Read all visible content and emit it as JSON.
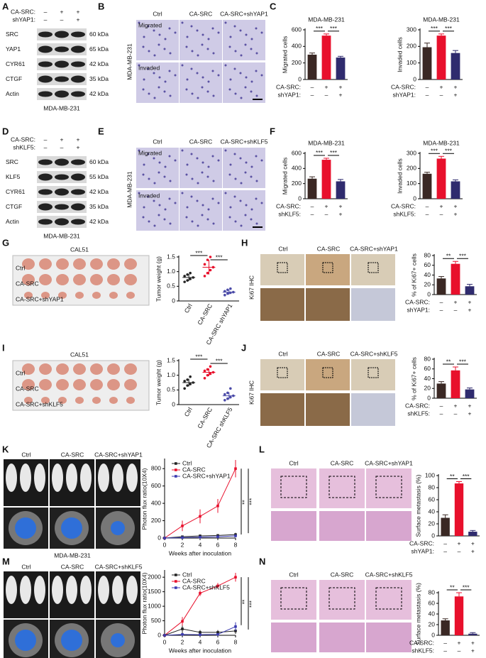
{
  "panel_labels": [
    "A",
    "B",
    "C",
    "D",
    "E",
    "F",
    "G",
    "H",
    "I",
    "J",
    "K",
    "L",
    "M",
    "N"
  ],
  "blots": [
    {
      "conditions": [
        {
          "label": "CA-SRC:",
          "signs": [
            "–",
            "+",
            "+"
          ]
        },
        {
          "label": "shYAP1:",
          "signs": [
            "–",
            "–",
            "+"
          ]
        }
      ],
      "bands": [
        {
          "name": "SRC",
          "size": "60 kDa"
        },
        {
          "name": "YAP1",
          "size": "65 kDa"
        },
        {
          "name": "CYR61",
          "size": "42 kDa"
        },
        {
          "name": "CTGF",
          "size": "35 kDa"
        },
        {
          "name": "Actin",
          "size": "42 kDa"
        }
      ],
      "caption": "MDA-MB-231"
    },
    {
      "conditions": [
        {
          "label": "CA-SRC:",
          "signs": [
            "–",
            "+",
            "+"
          ]
        },
        {
          "label": "shKLF5:",
          "signs": [
            "–",
            "–",
            "+"
          ]
        }
      ],
      "bands": [
        {
          "name": "SRC",
          "size": "60 kDa"
        },
        {
          "name": "KLF5",
          "size": "55 kDa"
        },
        {
          "name": "CYR61",
          "size": "42 kDa"
        },
        {
          "name": "CTGF",
          "size": "35 kDa"
        },
        {
          "name": "Actin",
          "size": "42 kDa"
        }
      ],
      "caption": "MDA-MB-231"
    }
  ],
  "transwell": [
    {
      "columns": [
        "Ctrl",
        "CA-SRC",
        "CA-SRC+shYAP1"
      ],
      "rows": [
        "Migrated",
        "Invaded"
      ],
      "side_label": "MDA-MB-231"
    },
    {
      "columns": [
        "Ctrl",
        "CA-SRC",
        "CA-SRC+shKLF5"
      ],
      "rows": [
        "Migrated",
        "Invaded"
      ],
      "side_label": "MDA-MB-231"
    }
  ],
  "tumors": [
    {
      "title": "CAL51",
      "rows": [
        "Ctrl",
        "CA-SRC",
        "CA-SRC+shYAP1"
      ]
    },
    {
      "title": "CAL51",
      "rows": [
        "Ctrl",
        "CA-SRC",
        "CA-SRC+shKLF5"
      ]
    }
  ],
  "ihc": [
    {
      "columns": [
        "Ctrl",
        "CA-SRC",
        "CA-SRC+shYAP1"
      ],
      "side_label": "Ki67 IHC"
    },
    {
      "columns": [
        "Ctrl",
        "CA-SRC",
        "CA-SRC+shKLF5"
      ],
      "side_label": "Ki67 IHC"
    }
  ],
  "imaging": [
    {
      "columns": [
        "Ctrl",
        "CA-SRC",
        "CA-SRC+shYAP1"
      ],
      "caption": "MDA-MB-231"
    },
    {
      "columns": [
        "Ctrl",
        "CA-SRC",
        "CA-SRC+shKLF5"
      ],
      "caption": "MDA-MB-231"
    }
  ],
  "histology": [
    {
      "columns": [
        "Ctrl",
        "CA-SRC",
        "CA-SRC+shYAP1"
      ]
    },
    {
      "columns": [
        "Ctrl",
        "CA-SRC",
        "CA-SRC+shKLF5"
      ]
    }
  ],
  "charts": [
    {
      "type": "bar",
      "title": "MDA-MB-231",
      "ylabel": "Migrated cells",
      "ylim": [
        0,
        600
      ],
      "yticks": [
        0,
        200,
        400,
        600
      ],
      "values": [
        300,
        530,
        265
      ],
      "errors": [
        20,
        20,
        15
      ],
      "colors": [
        "#3a2824",
        "#e8102c",
        "#2f2b6e"
      ],
      "annotations": [
        "***",
        "***"
      ],
      "conditions": [
        {
          "label": "CA-SRC:",
          "signs": [
            "–",
            "+",
            "+"
          ]
        },
        {
          "label": "shYAP1:",
          "signs": [
            "–",
            "–",
            "+"
          ]
        }
      ]
    },
    {
      "type": "bar",
      "title": "MDA-MB-231",
      "ylabel": "Invaded cells",
      "ylim": [
        0,
        300
      ],
      "yticks": [
        0,
        100,
        200,
        300
      ],
      "values": [
        195,
        265,
        160
      ],
      "errors": [
        25,
        10,
        15
      ],
      "colors": [
        "#3a2824",
        "#e8102c",
        "#2f2b6e"
      ],
      "annotations": [
        "***",
        "***"
      ],
      "conditions": [
        {
          "label": "CA-SRC:",
          "signs": [
            "–",
            "+",
            "+"
          ]
        },
        {
          "label": "shYAP1:",
          "signs": [
            "–",
            "–",
            "+"
          ]
        }
      ]
    },
    {
      "type": "bar",
      "title": "MDA-MB-231",
      "ylabel": "Migrated cells",
      "ylim": [
        0,
        600
      ],
      "yticks": [
        0,
        200,
        400,
        600
      ],
      "values": [
        265,
        515,
        230
      ],
      "errors": [
        25,
        20,
        25
      ],
      "colors": [
        "#3a2824",
        "#e8102c",
        "#2f2b6e"
      ],
      "annotations": [
        "***",
        "***"
      ],
      "conditions": [
        {
          "label": "CA-SRC:",
          "signs": [
            "–",
            "+",
            "+"
          ]
        },
        {
          "label": "shKLF5:",
          "signs": [
            "–",
            "–",
            "+"
          ]
        }
      ]
    },
    {
      "type": "bar",
      "title": "MDA-MB-231",
      "ylabel": "Invaded cells",
      "ylim": [
        0,
        300
      ],
      "yticks": [
        0,
        100,
        200,
        300
      ],
      "values": [
        165,
        265,
        115
      ],
      "errors": [
        10,
        15,
        10
      ],
      "colors": [
        "#3a2824",
        "#e8102c",
        "#2f2b6e"
      ],
      "annotations": [
        "***",
        "***"
      ],
      "conditions": [
        {
          "label": "CA-SRC:",
          "signs": [
            "–",
            "+",
            "+"
          ]
        },
        {
          "label": "shKLF5:",
          "signs": [
            "–",
            "–",
            "+"
          ]
        }
      ]
    },
    {
      "type": "scatter",
      "ylabel": "Tumor weight (g)",
      "categories": [
        "Ctrl",
        "CA-SRC",
        "CA-SRC shYAP1"
      ],
      "ylim": [
        0,
        1.5
      ],
      "yticks": [
        0,
        0.5,
        {
          "value": 1,
          "label": "1.0"
        },
        1.5
      ],
      "points": [
        [
          0.65,
          0.7,
          0.75,
          0.8,
          0.85,
          0.9,
          0.95
        ],
        [
          0.85,
          0.95,
          1.05,
          1.15,
          1.25,
          1.4,
          1.5
        ],
        [
          0.2,
          0.25,
          0.28,
          0.3,
          0.33,
          0.38,
          0.42
        ]
      ],
      "means": [
        0.8,
        1.15,
        0.3
      ],
      "errors": [
        0.12,
        0.25,
        0.08
      ],
      "colors": [
        "#222222",
        "#e8102c",
        "#4b4ba8"
      ],
      "annotations": [
        "***",
        "***"
      ]
    },
    {
      "type": "bar",
      "ylabel": "% of Ki67+ cells",
      "ylim": [
        0,
        80
      ],
      "yticks": [
        0,
        20,
        40,
        60,
        80
      ],
      "values": [
        33,
        63,
        17
      ],
      "errors": [
        4,
        5,
        4
      ],
      "colors": [
        "#3a2824",
        "#e8102c",
        "#2f2b6e"
      ],
      "annotations": [
        "**",
        "***"
      ],
      "conditions": [
        {
          "label": "CA-SRC:",
          "signs": [
            "–",
            "+",
            "+"
          ]
        },
        {
          "label": "shYAP1:",
          "signs": [
            "–",
            "–",
            "+"
          ]
        }
      ]
    },
    {
      "type": "scatter",
      "ylabel": "Tumor weight (g)",
      "categories": [
        "Ctrl",
        "CA-SRC",
        "CA-SRC shKLF5"
      ],
      "ylim": [
        0,
        1.5
      ],
      "yticks": [
        0,
        0.5,
        {
          "value": 1,
          "label": "1.0"
        },
        1.5
      ],
      "points": [
        [
          0.55,
          0.65,
          0.7,
          0.75,
          0.8,
          0.85,
          0.95
        ],
        [
          0.9,
          1.0,
          1.05,
          1.1,
          1.15,
          1.2,
          1.3
        ],
        [
          0.15,
          0.2,
          0.25,
          0.3,
          0.35,
          0.4,
          0.55
        ]
      ],
      "means": [
        0.75,
        1.1,
        0.3
      ],
      "errors": [
        0.13,
        0.13,
        0.12
      ],
      "colors": [
        "#222222",
        "#e8102c",
        "#4b4ba8"
      ],
      "annotations": [
        "***",
        "***"
      ]
    },
    {
      "type": "bar",
      "ylabel": "% of Ki67+ cells",
      "ylim": [
        0,
        80
      ],
      "yticks": [
        0,
        20,
        40,
        60,
        80
      ],
      "values": [
        30,
        57,
        18
      ],
      "errors": [
        4,
        7,
        3
      ],
      "colors": [
        "#3a2824",
        "#e8102c",
        "#2f2b6e"
      ],
      "annotations": [
        "**",
        "***"
      ],
      "conditions": [
        {
          "label": "CA-SRC:",
          "signs": [
            "–",
            "+",
            "+"
          ]
        },
        {
          "label": "shKLF5:",
          "signs": [
            "–",
            "–",
            "+"
          ]
        }
      ]
    },
    {
      "type": "line",
      "ylabel": "Photon flux ratio(10X4)",
      "xlabel": "Weeks after inoculation",
      "xlim": [
        0,
        8
      ],
      "xticks": [
        0,
        2,
        4,
        6,
        8
      ],
      "ylim": [
        0,
        900
      ],
      "yticks": [
        0,
        200,
        400,
        600,
        800
      ],
      "x": [
        0,
        2,
        4,
        6,
        8
      ],
      "series": [
        {
          "name": "Ctrl",
          "color": "#222222",
          "values": [
            0,
            15,
            25,
            30,
            40
          ],
          "errors": [
            0,
            10,
            15,
            15,
            20
          ]
        },
        {
          "name": "CA-SRC",
          "color": "#e8102c",
          "values": [
            0,
            140,
            250,
            370,
            800
          ],
          "errors": [
            0,
            60,
            80,
            80,
            100
          ]
        },
        {
          "name": "CA-SRC+shYAP1",
          "color": "#3b3bb0",
          "values": [
            0,
            5,
            10,
            15,
            25
          ],
          "errors": [
            0,
            5,
            8,
            10,
            15
          ]
        }
      ],
      "annotations": [
        "**",
        "***"
      ]
    },
    {
      "type": "bar",
      "ylabel": "Surface metastasis (%)",
      "ylim": [
        0,
        100
      ],
      "yticks": [
        0,
        20,
        40,
        60,
        80,
        100
      ],
      "values": [
        30,
        87,
        7
      ],
      "errors": [
        5,
        3,
        2
      ],
      "colors": [
        "#3a2824",
        "#e8102c",
        "#2f2b6e"
      ],
      "annotations": [
        "**",
        "***"
      ],
      "conditions": [
        {
          "label": "CA-SRC:",
          "signs": [
            "–",
            "+",
            "+"
          ]
        },
        {
          "label": "shYAP1:",
          "signs": [
            "–",
            "–",
            "+"
          ]
        }
      ]
    },
    {
      "type": "line",
      "ylabel": "Photon flux ratio(10X4)",
      "xlabel": "Weeks after inoculation",
      "xlim": [
        0,
        8
      ],
      "xticks": [
        0,
        2,
        4,
        6,
        8
      ],
      "ylim": [
        0,
        2200
      ],
      "yticks": [
        0,
        500,
        1000,
        1500,
        2000
      ],
      "x": [
        0,
        2,
        4,
        6,
        8
      ],
      "series": [
        {
          "name": "Ctrl",
          "color": "#222222",
          "values": [
            0,
            220,
            100,
            100,
            150
          ],
          "errors": [
            0,
            200,
            80,
            80,
            100
          ]
        },
        {
          "name": "CA-SRC",
          "color": "#e8102c",
          "values": [
            0,
            480,
            1450,
            1700,
            2000
          ],
          "errors": [
            0,
            150,
            100,
            100,
            150
          ]
        },
        {
          "name": "CA-SRC+shKLF5",
          "color": "#3b3bb0",
          "values": [
            0,
            30,
            20,
            30,
            300
          ],
          "errors": [
            0,
            30,
            20,
            30,
            150
          ]
        }
      ],
      "annotations": [
        "**",
        "***"
      ]
    },
    {
      "type": "bar",
      "ylabel": "Surface metastasis (%)",
      "ylim": [
        0,
        80
      ],
      "yticks": [
        0,
        20,
        40,
        60,
        80
      ],
      "values": [
        28,
        73,
        3
      ],
      "errors": [
        3,
        7,
        2
      ],
      "colors": [
        "#3a2824",
        "#e8102c",
        "#2f2b6e"
      ],
      "annotations": [
        "**",
        "***"
      ],
      "conditions": [
        {
          "label": "CA-SRC:",
          "signs": [
            "–",
            "+",
            "+"
          ]
        },
        {
          "label": "shKLF5:",
          "signs": [
            "–",
            "–",
            "+"
          ]
        }
      ]
    }
  ]
}
